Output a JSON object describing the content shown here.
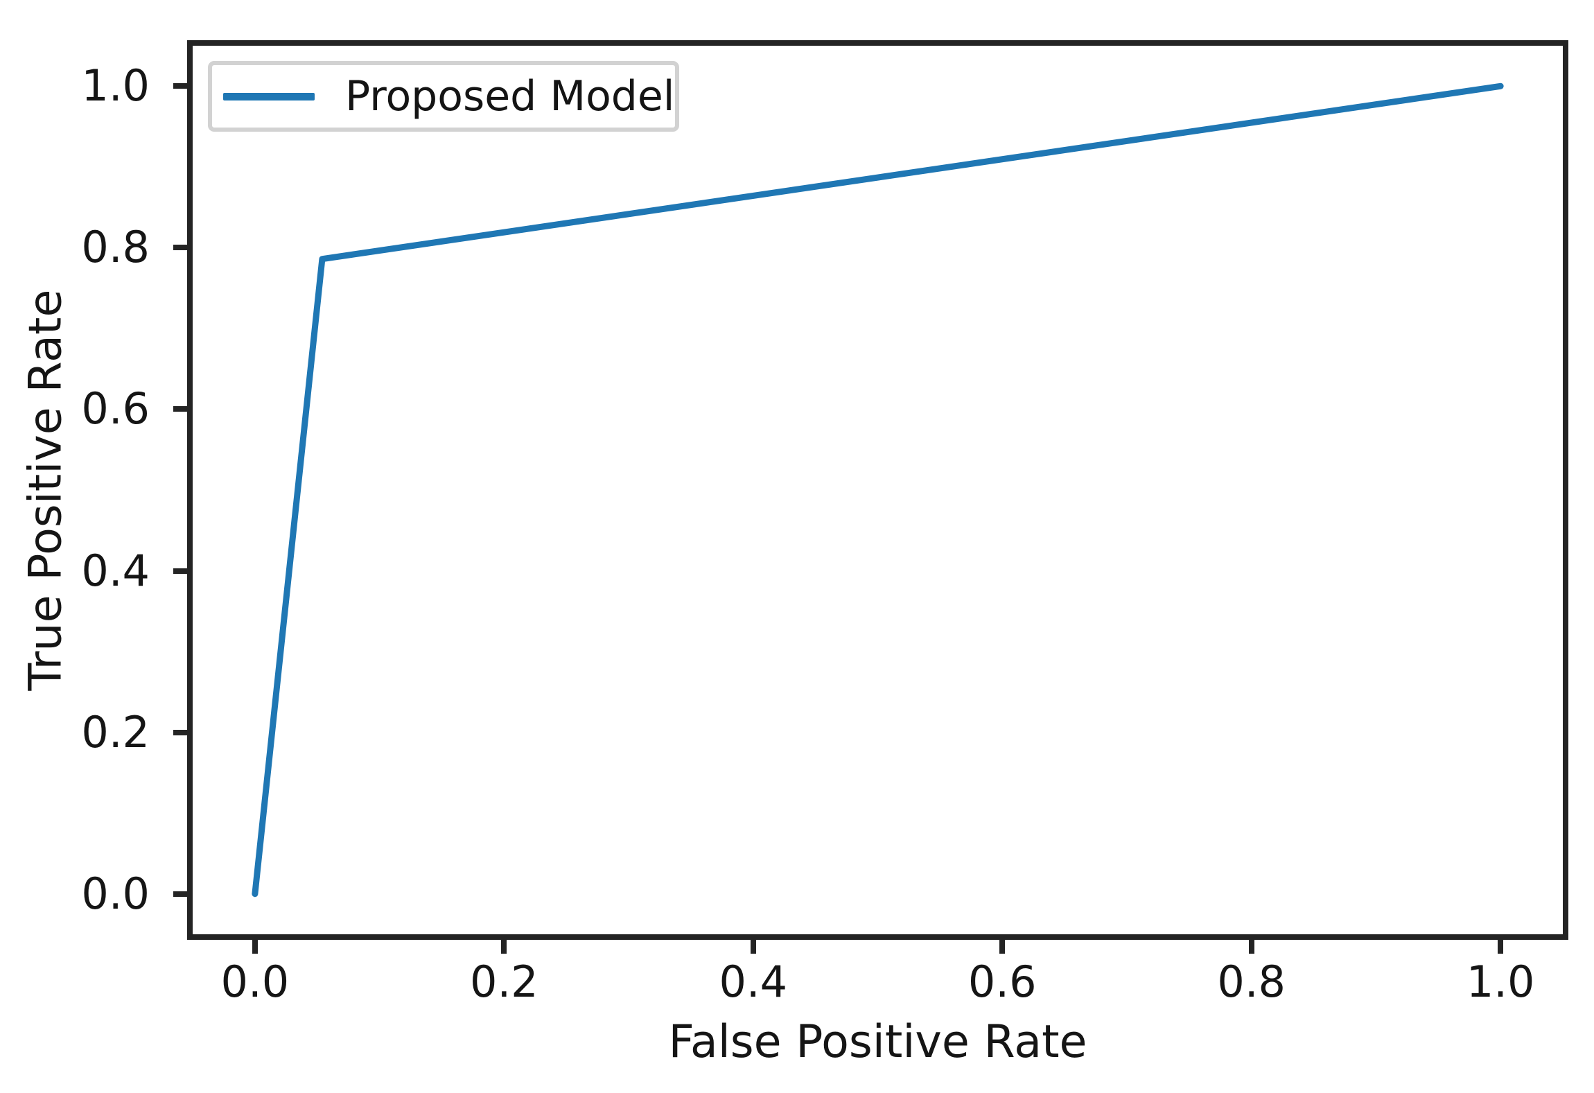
{
  "figure": {
    "background": "#ffffff",
    "spine_color": "#242424",
    "text_color": "#151515"
  },
  "chart_data": {
    "type": "line",
    "title": "",
    "xlabel": "False Positive Rate",
    "ylabel": "True Positive Rate",
    "xlim": [
      -0.05,
      1.05
    ],
    "ylim": [
      -0.05,
      1.05
    ],
    "xticks": [
      0.0,
      0.2,
      0.4,
      0.6,
      0.8,
      1.0
    ],
    "yticks": [
      0.0,
      0.2,
      0.4,
      0.6,
      0.8,
      1.0
    ],
    "xtick_labels": [
      "0.0",
      "0.2",
      "0.4",
      "0.6",
      "0.8",
      "1.0"
    ],
    "ytick_labels": [
      "0.0",
      "0.2",
      "0.4",
      "0.6",
      "0.8",
      "1.0"
    ],
    "grid": false,
    "legend": {
      "position": "upper-left",
      "entries": [
        {
          "label": "Proposed Model",
          "color": "#1f77b4",
          "marker": "line"
        }
      ]
    },
    "series": [
      {
        "name": "Proposed Model",
        "color": "#1f77b4",
        "points": [
          [
            0.0,
            0.0
          ],
          [
            0.054,
            0.786
          ],
          [
            1.0,
            1.0
          ]
        ]
      }
    ]
  }
}
